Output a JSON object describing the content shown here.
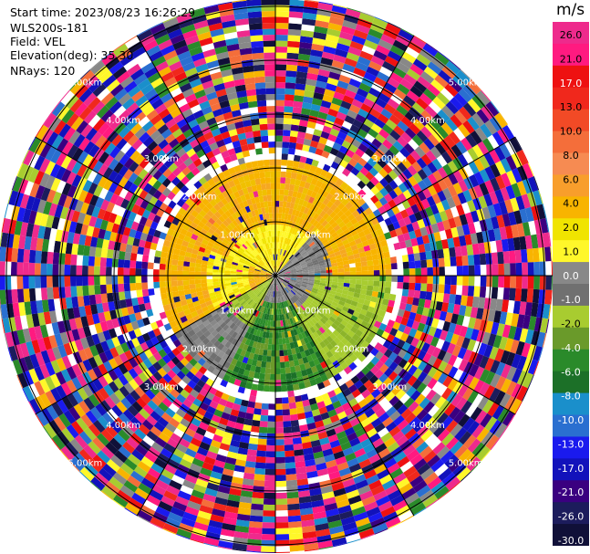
{
  "header": {
    "start_time": "Start time: 2023/08/23 16:26:29",
    "instrument": "WLS200s-181",
    "field": "Field: VEL",
    "elevation": "Elevation(deg): 35.30",
    "nrays": "NRays: 120"
  },
  "colorbar": {
    "unit": "m/s",
    "ticks": [
      "26.0",
      "21.0",
      "17.0",
      "13.0",
      "10.0",
      "8.0",
      "6.0",
      "4.0",
      "2.0",
      "1.0",
      "0.0",
      "-1.0",
      "-2.0",
      "-4.0",
      "-6.0",
      "-8.0",
      "-10.0",
      "-13.0",
      "-17.0",
      "-21.0",
      "-26.0",
      "-30.0"
    ],
    "colors": [
      "#ee2a8c",
      "#ff1a80",
      "#ee1111",
      "#f0281c",
      "#f24a26",
      "#f46e3a",
      "#f68b52",
      "#f89e2c",
      "#f8b400",
      "#f0e400",
      "#fff72a",
      "#888888",
      "#707070",
      "#a8cc30",
      "#6a9a2a",
      "#2a8a2a",
      "#1c7028",
      "#1a8fcb",
      "#2a6fd0",
      "#1a1aee",
      "#1212bb",
      "#3a0080",
      "#1c1c5c",
      "#101038"
    ]
  },
  "chart_data": {
    "type": "ppi",
    "field": "VEL",
    "units": "m/s",
    "n_rays": 120,
    "range_ring_labels": [
      "1.00km",
      "2.00km",
      "3.00km",
      "4.00km",
      "5.00km"
    ],
    "value_scale": [
      26.0,
      21.0,
      17.0,
      13.0,
      10.0,
      8.0,
      6.0,
      4.0,
      2.0,
      1.0,
      0.0,
      -1.0,
      -2.0,
      -4.0,
      -6.0,
      -8.0,
      -10.0,
      -13.0,
      -17.0,
      -21.0,
      -26.0,
      -30.0
    ]
  }
}
